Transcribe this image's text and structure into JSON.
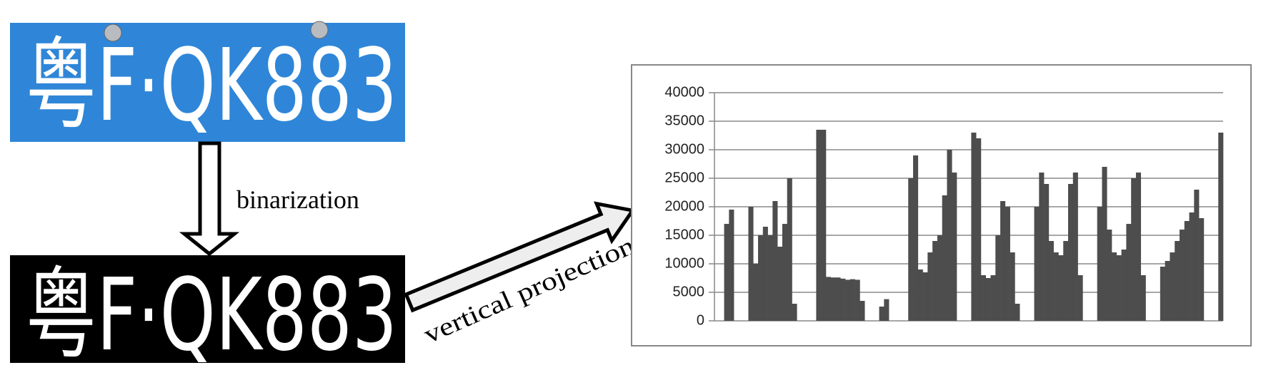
{
  "plates": [
    {
      "text": "粤F·QK883"
    },
    {
      "text": "粤F·QK883"
    }
  ],
  "steps": {
    "binarization": "binarization",
    "projection": "vertical projection"
  },
  "chart_data": {
    "type": "bar",
    "color": "#4d4d4d",
    "grid": true,
    "ylim": [
      0,
      40000
    ],
    "yticks": [
      0,
      5000,
      10000,
      15000,
      20000,
      25000,
      30000,
      35000,
      40000
    ],
    "values": [
      0,
      0,
      17000,
      19500,
      0,
      0,
      0,
      20000,
      10000,
      15000,
      16500,
      15000,
      21000,
      13000,
      17000,
      25000,
      3000,
      0,
      0,
      0,
      0,
      33500,
      33500,
      7700,
      7600,
      7600,
      7400,
      7200,
      7300,
      7200,
      3500,
      0,
      0,
      0,
      2500,
      3800,
      0,
      0,
      0,
      0,
      25000,
      29000,
      9000,
      8500,
      12000,
      14000,
      15000,
      22000,
      30000,
      26000,
      0,
      0,
      0,
      33000,
      32000,
      8000,
      7500,
      8000,
      15000,
      21000,
      20000,
      12000,
      3000,
      0,
      0,
      0,
      20000,
      26000,
      24000,
      14000,
      12000,
      11500,
      14000,
      24000,
      26000,
      8000,
      0,
      0,
      0,
      20000,
      27000,
      16000,
      12000,
      11500,
      12500,
      17000,
      25000,
      26000,
      8000,
      0,
      0,
      0,
      9500,
      10500,
      12000,
      14000,
      16000,
      17500,
      19000,
      23000,
      18000,
      0,
      0,
      0,
      33000
    ]
  }
}
